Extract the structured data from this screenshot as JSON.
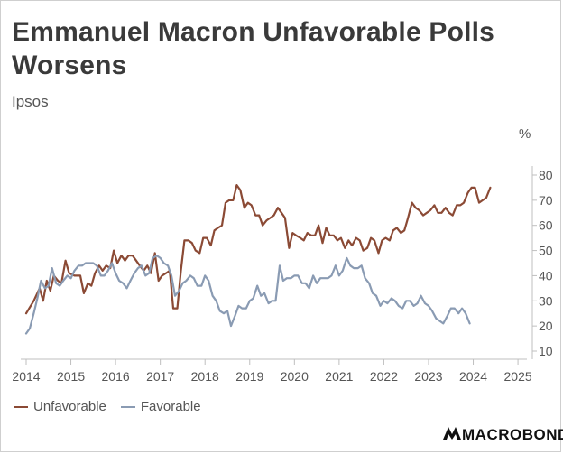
{
  "header": {
    "title": "Emmanuel Macron Unfavorable Polls Worsens",
    "subtitle": "Ipsos",
    "unit": "%"
  },
  "brand": {
    "name": "MACROBOND",
    "icon": "macrobond-logo-icon"
  },
  "chart_data": {
    "type": "line",
    "title": "Emmanuel Macron Unfavorable Polls Worsens",
    "subtitle": "Ipsos",
    "ylabel": "%",
    "xlim": [
      2014.0,
      2025.2
    ],
    "ylim": [
      10,
      80
    ],
    "y_ticks": [
      10,
      20,
      30,
      40,
      50,
      60,
      70,
      80
    ],
    "x_tick_labels": [
      "2014",
      "2015",
      "2016",
      "2017",
      "2018",
      "2019",
      "2020",
      "2021",
      "2022",
      "2023",
      "2024",
      "2025"
    ],
    "y_axis_side": "right",
    "grid": false,
    "legend_position": "bottom-left",
    "series": [
      {
        "name": "Unfavorable",
        "color": "#8b4a35",
        "points": [
          [
            2014.0,
            25
          ],
          [
            2014.17,
            30
          ],
          [
            2014.3,
            35
          ],
          [
            2014.38,
            30
          ],
          [
            2014.46,
            38
          ],
          [
            2014.54,
            34
          ],
          [
            2014.62,
            40
          ],
          [
            2014.71,
            38
          ],
          [
            2014.79,
            37
          ],
          [
            2014.88,
            46
          ],
          [
            2014.96,
            41
          ],
          [
            2015.08,
            40
          ],
          [
            2015.21,
            40
          ],
          [
            2015.29,
            33
          ],
          [
            2015.38,
            37
          ],
          [
            2015.46,
            36
          ],
          [
            2015.54,
            41
          ],
          [
            2015.63,
            44
          ],
          [
            2015.71,
            42
          ],
          [
            2015.79,
            44
          ],
          [
            2015.88,
            43
          ],
          [
            2015.96,
            50
          ],
          [
            2016.04,
            45
          ],
          [
            2016.13,
            48
          ],
          [
            2016.21,
            46
          ],
          [
            2016.29,
            48
          ],
          [
            2016.38,
            48
          ],
          [
            2016.46,
            46
          ],
          [
            2016.54,
            44
          ],
          [
            2016.63,
            42
          ],
          [
            2016.71,
            44
          ],
          [
            2016.79,
            41
          ],
          [
            2016.88,
            49
          ],
          [
            2016.96,
            38
          ],
          [
            2017.04,
            40
          ],
          [
            2017.13,
            41
          ],
          [
            2017.21,
            42
          ],
          [
            2017.29,
            27
          ],
          [
            2017.38,
            27
          ],
          [
            2017.46,
            42
          ],
          [
            2017.54,
            54
          ],
          [
            2017.63,
            54
          ],
          [
            2017.71,
            53
          ],
          [
            2017.79,
            50
          ],
          [
            2017.88,
            49
          ],
          [
            2017.96,
            55
          ],
          [
            2018.04,
            55
          ],
          [
            2018.13,
            52
          ],
          [
            2018.21,
            58
          ],
          [
            2018.29,
            59
          ],
          [
            2018.38,
            60
          ],
          [
            2018.46,
            69
          ],
          [
            2018.54,
            70
          ],
          [
            2018.63,
            70
          ],
          [
            2018.71,
            76
          ],
          [
            2018.79,
            74
          ],
          [
            2018.88,
            67
          ],
          [
            2018.96,
            69
          ],
          [
            2019.04,
            68
          ],
          [
            2019.13,
            64
          ],
          [
            2019.21,
            64
          ],
          [
            2019.29,
            60
          ],
          [
            2019.38,
            62
          ],
          [
            2019.46,
            63
          ],
          [
            2019.54,
            64
          ],
          [
            2019.63,
            67
          ],
          [
            2019.71,
            65
          ],
          [
            2019.79,
            63
          ],
          [
            2019.88,
            51
          ],
          [
            2019.96,
            57
          ],
          [
            2020.04,
            56
          ],
          [
            2020.13,
            55
          ],
          [
            2020.21,
            54
          ],
          [
            2020.29,
            57
          ],
          [
            2020.38,
            56
          ],
          [
            2020.46,
            56
          ],
          [
            2020.54,
            60
          ],
          [
            2020.63,
            53
          ],
          [
            2020.71,
            59
          ],
          [
            2020.79,
            56
          ],
          [
            2020.88,
            56
          ],
          [
            2020.96,
            54
          ],
          [
            2021.04,
            55
          ],
          [
            2021.13,
            51
          ],
          [
            2021.21,
            54
          ],
          [
            2021.29,
            52
          ],
          [
            2021.38,
            55
          ],
          [
            2021.46,
            54
          ],
          [
            2021.54,
            50
          ],
          [
            2021.63,
            51
          ],
          [
            2021.71,
            55
          ],
          [
            2021.79,
            54
          ],
          [
            2021.88,
            49
          ],
          [
            2021.96,
            54
          ],
          [
            2022.04,
            55
          ],
          [
            2022.13,
            54
          ],
          [
            2022.21,
            58
          ],
          [
            2022.29,
            59
          ],
          [
            2022.38,
            57
          ],
          [
            2022.46,
            58
          ],
          [
            2022.54,
            63
          ],
          [
            2022.63,
            69
          ],
          [
            2022.71,
            67
          ],
          [
            2022.79,
            66
          ],
          [
            2022.88,
            64
          ],
          [
            2022.96,
            65
          ],
          [
            2023.04,
            66
          ],
          [
            2023.13,
            68
          ],
          [
            2023.21,
            65
          ],
          [
            2023.29,
            65
          ],
          [
            2023.38,
            67
          ],
          [
            2023.46,
            65
          ],
          [
            2023.54,
            64
          ],
          [
            2023.63,
            68
          ],
          [
            2023.71,
            68
          ],
          [
            2023.79,
            69
          ],
          [
            2023.88,
            73
          ],
          [
            2023.96,
            75
          ],
          [
            2024.04,
            75
          ],
          [
            2024.13,
            69
          ],
          [
            2024.21,
            70
          ],
          [
            2024.29,
            71
          ],
          [
            2024.38,
            75
          ]
        ]
      },
      {
        "name": "Favorable",
        "color": "#8a9bb3",
        "points": [
          [
            2014.0,
            17
          ],
          [
            2014.08,
            19
          ],
          [
            2014.17,
            25
          ],
          [
            2014.25,
            31
          ],
          [
            2014.33,
            38
          ],
          [
            2014.42,
            35
          ],
          [
            2014.5,
            36
          ],
          [
            2014.58,
            43
          ],
          [
            2014.67,
            37
          ],
          [
            2014.75,
            36
          ],
          [
            2014.83,
            38
          ],
          [
            2014.92,
            40
          ],
          [
            2015.0,
            39
          ],
          [
            2015.08,
            42
          ],
          [
            2015.17,
            44
          ],
          [
            2015.25,
            44
          ],
          [
            2015.33,
            45
          ],
          [
            2015.42,
            45
          ],
          [
            2015.5,
            45
          ],
          [
            2015.58,
            44
          ],
          [
            2015.67,
            40
          ],
          [
            2015.75,
            40
          ],
          [
            2015.83,
            42
          ],
          [
            2015.92,
            45
          ],
          [
            2016.0,
            41
          ],
          [
            2016.08,
            38
          ],
          [
            2016.17,
            37
          ],
          [
            2016.25,
            35
          ],
          [
            2016.33,
            38
          ],
          [
            2016.42,
            41
          ],
          [
            2016.5,
            43
          ],
          [
            2016.58,
            44
          ],
          [
            2016.67,
            40
          ],
          [
            2016.75,
            41
          ],
          [
            2016.83,
            47
          ],
          [
            2016.92,
            48
          ],
          [
            2017.0,
            47
          ],
          [
            2017.08,
            45
          ],
          [
            2017.17,
            44
          ],
          [
            2017.25,
            40
          ],
          [
            2017.33,
            32
          ],
          [
            2017.42,
            34
          ],
          [
            2017.5,
            37
          ],
          [
            2017.58,
            38
          ],
          [
            2017.67,
            40
          ],
          [
            2017.75,
            39
          ],
          [
            2017.83,
            36
          ],
          [
            2017.92,
            36
          ],
          [
            2018.0,
            40
          ],
          [
            2018.08,
            38
          ],
          [
            2018.17,
            32
          ],
          [
            2018.25,
            30
          ],
          [
            2018.33,
            26
          ],
          [
            2018.42,
            25
          ],
          [
            2018.5,
            26
          ],
          [
            2018.58,
            20
          ],
          [
            2018.67,
            24
          ],
          [
            2018.75,
            28
          ],
          [
            2018.83,
            27
          ],
          [
            2018.92,
            27
          ],
          [
            2019.0,
            30
          ],
          [
            2019.08,
            31
          ],
          [
            2019.17,
            36
          ],
          [
            2019.25,
            32
          ],
          [
            2019.33,
            33
          ],
          [
            2019.42,
            29
          ],
          [
            2019.5,
            30
          ],
          [
            2019.58,
            30
          ],
          [
            2019.67,
            44
          ],
          [
            2019.75,
            38
          ],
          [
            2019.83,
            39
          ],
          [
            2019.92,
            39
          ],
          [
            2020.0,
            40
          ],
          [
            2020.08,
            40
          ],
          [
            2020.17,
            37
          ],
          [
            2020.25,
            37
          ],
          [
            2020.33,
            35
          ],
          [
            2020.42,
            40
          ],
          [
            2020.5,
            37
          ],
          [
            2020.58,
            39
          ],
          [
            2020.67,
            39
          ],
          [
            2020.75,
            39
          ],
          [
            2020.83,
            40
          ],
          [
            2020.92,
            44
          ],
          [
            2021.0,
            40
          ],
          [
            2021.08,
            42
          ],
          [
            2021.17,
            47
          ],
          [
            2021.25,
            44
          ],
          [
            2021.33,
            43
          ],
          [
            2021.42,
            43
          ],
          [
            2021.5,
            44
          ],
          [
            2021.58,
            39
          ],
          [
            2021.67,
            37
          ],
          [
            2021.75,
            33
          ],
          [
            2021.83,
            32
          ],
          [
            2021.92,
            28
          ],
          [
            2022.0,
            30
          ],
          [
            2022.08,
            29
          ],
          [
            2022.17,
            31
          ],
          [
            2022.25,
            30
          ],
          [
            2022.33,
            28
          ],
          [
            2022.42,
            27
          ],
          [
            2022.5,
            30
          ],
          [
            2022.58,
            30
          ],
          [
            2022.67,
            28
          ],
          [
            2022.75,
            29
          ],
          [
            2022.83,
            32
          ],
          [
            2022.92,
            29
          ],
          [
            2023.0,
            28
          ],
          [
            2023.08,
            26
          ],
          [
            2023.17,
            23
          ],
          [
            2023.25,
            22
          ],
          [
            2023.33,
            21
          ],
          [
            2023.42,
            24
          ],
          [
            2023.5,
            27
          ],
          [
            2023.58,
            27
          ],
          [
            2023.67,
            25
          ],
          [
            2023.75,
            27
          ],
          [
            2023.83,
            25
          ],
          [
            2023.92,
            21
          ]
        ]
      }
    ]
  }
}
